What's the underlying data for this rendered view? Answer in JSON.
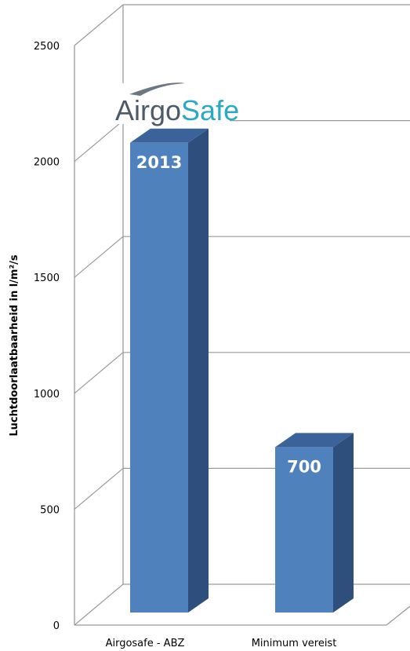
{
  "chart_data": {
    "type": "bar",
    "title": "",
    "xlabel": "",
    "ylabel": "Luchtdoorlaatbaarheid in l/m²/s",
    "categories": [
      "Airgosafe - ABZ",
      "Minimum vereist"
    ],
    "series": [
      {
        "values": [
          2013,
          700
        ],
        "data_labels": [
          "2013",
          "700"
        ]
      }
    ],
    "ylim": [
      0,
      2500
    ],
    "yticks": [
      0,
      500,
      1000,
      1500,
      2000,
      2500
    ],
    "ytick_labels": [
      "0",
      "500",
      "1000",
      "1500",
      "2000",
      "2500"
    ],
    "grid": true,
    "style": "3d-column",
    "colors": {
      "bar_front": "#4f81bd",
      "bar_side": "#2e4f7c",
      "bar_top": "#3c629a",
      "grid": "#9a9a9a"
    }
  },
  "logo": {
    "part1": "Airgo",
    "part2": "Safe",
    "color1": "#4d5b69",
    "color2": "#2aa9c4"
  }
}
